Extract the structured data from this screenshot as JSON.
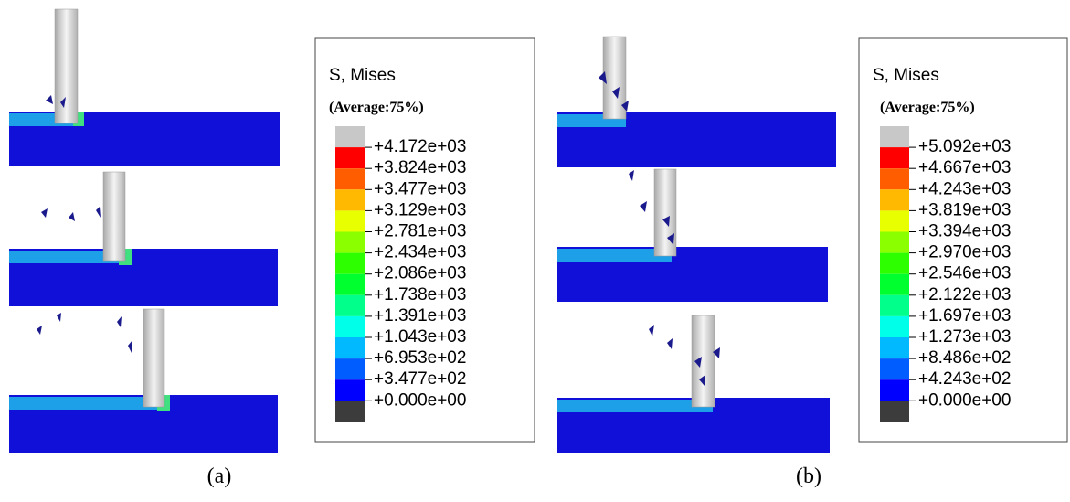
{
  "panels": [
    {
      "caption": "(a)",
      "legend": {
        "title": "S, Mises",
        "subtitle": "(Average:75%)",
        "labels": [
          "+4.172e+03",
          "+3.824e+03",
          "+3.477e+03",
          "+3.129e+03",
          "+2.781e+03",
          "+2.434e+03",
          "+2.086e+03",
          "+1.738e+03",
          "+1.391e+03",
          "+1.043e+03",
          "+6.953e+02",
          "+3.477e+02",
          "+0.000e+00"
        ],
        "colors": [
          "#c8c8c8",
          "#ff0000",
          "#ff5d00",
          "#ffb900",
          "#e8ff00",
          "#8bff00",
          "#2eff00",
          "#00ff2e",
          "#00ff8b",
          "#00ffe8",
          "#00b9ff",
          "#005dff",
          "#0000ff",
          "#3c3c3c"
        ]
      }
    },
    {
      "caption": "(b)",
      "legend": {
        "title": "S, Mises",
        "subtitle": "(Average:75%)",
        "labels": [
          "+5.092e+03",
          "+4.667e+03",
          "+4.243e+03",
          "+3.819e+03",
          "+3.394e+03",
          "+2.970e+03",
          "+2.546e+03",
          "+2.122e+03",
          "+1.697e+03",
          "+1.273e+03",
          "+8.486e+02",
          "+4.243e+02",
          "+0.000e+00"
        ],
        "colors": [
          "#c8c8c8",
          "#ff0000",
          "#ff5d00",
          "#ffb900",
          "#e8ff00",
          "#8bff00",
          "#2eff00",
          "#00ff2e",
          "#00ff8b",
          "#00ffe8",
          "#00b9ff",
          "#005dff",
          "#0000ff",
          "#3c3c3c"
        ]
      }
    }
  ]
}
